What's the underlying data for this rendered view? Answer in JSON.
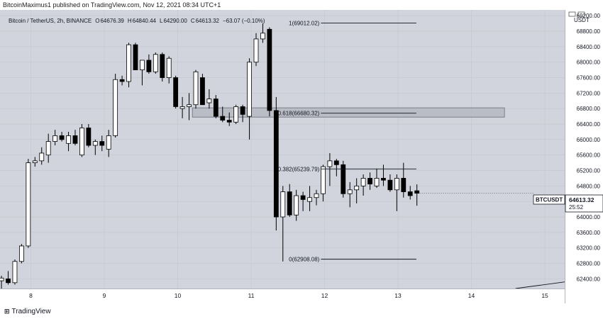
{
  "header": {
    "published_text": "BitcoinMaximus1 published on TradingView.com, Nov 12, 2021 08:34 UTC+1"
  },
  "legend": {
    "symbol_text": "Bitcoin / TetherUS, 2h, BINANCE",
    "open_label": "O",
    "open_value": "64676.39",
    "high_label": "H",
    "high_value": "64840.44",
    "low_label": "L",
    "low_value": "64290.00",
    "close_label": "C",
    "close_value": "64613.32",
    "change_value": "−63.07 (−0.10%)"
  },
  "price_scale": {
    "currency": "USDT"
  },
  "current_price": {
    "symbol": "BTCUSDT",
    "price": "64613.32",
    "countdown": "25:52"
  },
  "footer": {
    "brand": "TradingView"
  },
  "colors": {
    "background": "#d1d4dc",
    "up_body": "#ffffff",
    "down_body": "#000000",
    "wick": "#000000",
    "fib_zone": "#b2b5be",
    "scale_bg": "#ffffff"
  },
  "chart_data": {
    "type": "candlestick",
    "symbol": "BTCUSDT",
    "interval": "2h",
    "xlabel": "",
    "ylabel": "",
    "ylim": [
      62150,
      69350
    ],
    "y_ticks": [
      62400,
      62800,
      63200,
      63600,
      64000,
      64400,
      64800,
      65200,
      65600,
      66000,
      66400,
      66800,
      67200,
      67600,
      68000,
      68400,
      68800,
      69200
    ],
    "x_tick_labels": [
      "8",
      "9",
      "10",
      "11",
      "12",
      "13",
      "14",
      "15"
    ],
    "x_ticks_day": [
      8,
      9,
      10,
      11,
      12,
      13,
      14,
      15
    ],
    "x_range_day": [
      7.58,
      15.27
    ],
    "candle_interval_day": 0.0833,
    "candles": [
      {
        "o": 62350,
        "h": 62480,
        "l": 62150,
        "c": 62420
      },
      {
        "o": 62400,
        "h": 62600,
        "l": 62250,
        "c": 62300
      },
      {
        "o": 62300,
        "h": 62900,
        "l": 62250,
        "c": 62850
      },
      {
        "o": 62850,
        "h": 63300,
        "l": 62800,
        "c": 63250
      },
      {
        "o": 63250,
        "h": 65500,
        "l": 63200,
        "c": 65400
      },
      {
        "o": 65400,
        "h": 65550,
        "l": 65300,
        "c": 65450
      },
      {
        "o": 65450,
        "h": 65800,
        "l": 65350,
        "c": 65650
      },
      {
        "o": 65600,
        "h": 66150,
        "l": 65400,
        "c": 65950
      },
      {
        "o": 65950,
        "h": 66250,
        "l": 65850,
        "c": 66100
      },
      {
        "o": 66100,
        "h": 66200,
        "l": 65950,
        "c": 66000
      },
      {
        "o": 65900,
        "h": 66200,
        "l": 65700,
        "c": 66100
      },
      {
        "o": 66100,
        "h": 66250,
        "l": 65850,
        "c": 65900
      },
      {
        "o": 65600,
        "h": 66400,
        "l": 65550,
        "c": 66300
      },
      {
        "o": 66300,
        "h": 66400,
        "l": 65800,
        "c": 65850
      },
      {
        "o": 65850,
        "h": 66000,
        "l": 65600,
        "c": 65950
      },
      {
        "o": 65950,
        "h": 66100,
        "l": 65700,
        "c": 65850
      },
      {
        "o": 65750,
        "h": 66250,
        "l": 65550,
        "c": 66100
      },
      {
        "o": 66100,
        "h": 67700,
        "l": 66050,
        "c": 67550
      },
      {
        "o": 67550,
        "h": 67650,
        "l": 67400,
        "c": 67500
      },
      {
        "o": 67500,
        "h": 68500,
        "l": 67350,
        "c": 68450
      },
      {
        "o": 68450,
        "h": 68500,
        "l": 67800,
        "c": 67800
      },
      {
        "o": 67800,
        "h": 68050,
        "l": 67400,
        "c": 68050
      },
      {
        "o": 68050,
        "h": 68200,
        "l": 67700,
        "c": 67750
      },
      {
        "o": 67750,
        "h": 68250,
        "l": 67700,
        "c": 68200
      },
      {
        "o": 68200,
        "h": 68250,
        "l": 67500,
        "c": 67600
      },
      {
        "o": 67600,
        "h": 68150,
        "l": 67450,
        "c": 68100
      },
      {
        "o": 67600,
        "h": 67650,
        "l": 66800,
        "c": 66850
      },
      {
        "o": 66800,
        "h": 67100,
        "l": 66550,
        "c": 66850
      },
      {
        "o": 66850,
        "h": 67200,
        "l": 66500,
        "c": 66900
      },
      {
        "o": 66900,
        "h": 67800,
        "l": 66800,
        "c": 67750
      },
      {
        "o": 67600,
        "h": 67700,
        "l": 66900,
        "c": 66900
      },
      {
        "o": 66950,
        "h": 67300,
        "l": 66800,
        "c": 67050
      },
      {
        "o": 67050,
        "h": 67150,
        "l": 66550,
        "c": 66600
      },
      {
        "o": 66600,
        "h": 66850,
        "l": 66450,
        "c": 66500
      },
      {
        "o": 66500,
        "h": 66700,
        "l": 66350,
        "c": 66450
      },
      {
        "o": 66450,
        "h": 66900,
        "l": 66400,
        "c": 66850
      },
      {
        "o": 66850,
        "h": 66900,
        "l": 66450,
        "c": 66650
      },
      {
        "o": 66600,
        "h": 68100,
        "l": 66000,
        "c": 68000
      },
      {
        "o": 68000,
        "h": 68750,
        "l": 67900,
        "c": 68600
      },
      {
        "o": 68600,
        "h": 69000,
        "l": 68500,
        "c": 68750
      },
      {
        "o": 68850,
        "h": 68900,
        "l": 66600,
        "c": 66750
      },
      {
        "o": 66750,
        "h": 67100,
        "l": 63650,
        "c": 64000
      },
      {
        "o": 64000,
        "h": 64800,
        "l": 62850,
        "c": 64650
      },
      {
        "o": 64650,
        "h": 64850,
        "l": 64000,
        "c": 64050
      },
      {
        "o": 64050,
        "h": 64700,
        "l": 63900,
        "c": 64550
      },
      {
        "o": 64550,
        "h": 64650,
        "l": 64150,
        "c": 64450
      },
      {
        "o": 64400,
        "h": 64800,
        "l": 64150,
        "c": 64500
      },
      {
        "o": 64500,
        "h": 64700,
        "l": 64300,
        "c": 64600
      },
      {
        "o": 64600,
        "h": 65350,
        "l": 64400,
        "c": 65300
      },
      {
        "o": 65300,
        "h": 65650,
        "l": 64800,
        "c": 65450
      },
      {
        "o": 65450,
        "h": 65500,
        "l": 65050,
        "c": 65350
      },
      {
        "o": 65350,
        "h": 65450,
        "l": 64500,
        "c": 64600
      },
      {
        "o": 64600,
        "h": 64900,
        "l": 64250,
        "c": 64700
      },
      {
        "o": 64700,
        "h": 65000,
        "l": 64350,
        "c": 64800
      },
      {
        "o": 64800,
        "h": 65100,
        "l": 64550,
        "c": 65000
      },
      {
        "o": 65000,
        "h": 65150,
        "l": 64700,
        "c": 64850
      },
      {
        "o": 64800,
        "h": 65250,
        "l": 64750,
        "c": 65000
      },
      {
        "o": 65000,
        "h": 65350,
        "l": 64800,
        "c": 64950
      },
      {
        "o": 64950,
        "h": 65100,
        "l": 64650,
        "c": 64700
      },
      {
        "o": 64700,
        "h": 65100,
        "l": 64150,
        "c": 65000
      },
      {
        "o": 65000,
        "h": 65400,
        "l": 64500,
        "c": 64650
      },
      {
        "o": 64650,
        "h": 64800,
        "l": 64450,
        "c": 64550
      },
      {
        "o": 64676.39,
        "h": 64840.44,
        "l": 64290,
        "c": 64613.32
      }
    ],
    "fib_levels": [
      {
        "label": "1(69012.02)",
        "price": 69012.02
      },
      {
        "label": "0.618(66680.32)",
        "price": 66680.32
      },
      {
        "label": "0.382(65239.79)",
        "price": 65239.79
      },
      {
        "label": "0(62908.08)",
        "price": 62908.08
      }
    ],
    "fib_line_days": [
      11.95,
      13.25
    ],
    "fib_zone": {
      "price_low": 66580,
      "price_high": 66820,
      "day_start": 10.2,
      "day_end": 14.45
    },
    "trendline": [
      {
        "day": 14.6,
        "price": 62150
      },
      {
        "day": 15.27,
        "price": 62320
      }
    ]
  }
}
